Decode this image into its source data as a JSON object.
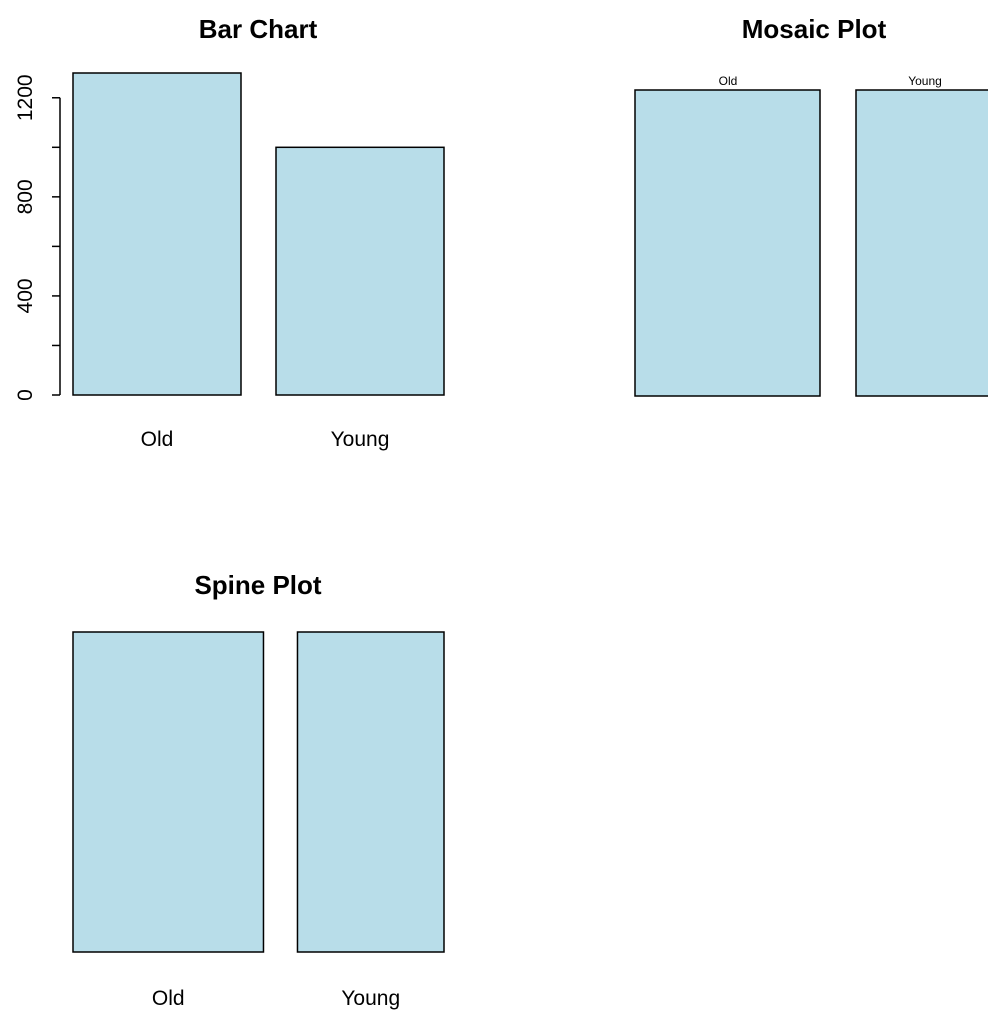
{
  "chart_data": [
    {
      "type": "bar",
      "title": "Bar Chart",
      "categories": [
        "Old",
        "Young"
      ],
      "values": [
        1300,
        1000
      ],
      "ylim": [
        0,
        1300
      ],
      "yticks": [
        "0",
        "400",
        "800",
        "1200"
      ],
      "bar_color": "#b8dde9"
    },
    {
      "type": "mosaic",
      "title": "Mosaic Plot",
      "categories": [
        "Old",
        "Young"
      ],
      "values": [
        1300,
        1000
      ],
      "bar_color": "#b8dde9"
    },
    {
      "type": "spine",
      "title": "Spine Plot",
      "categories": [
        "Old",
        "Young"
      ],
      "values": [
        1300,
        1000
      ],
      "bar_color": "#b8dde9"
    }
  ]
}
